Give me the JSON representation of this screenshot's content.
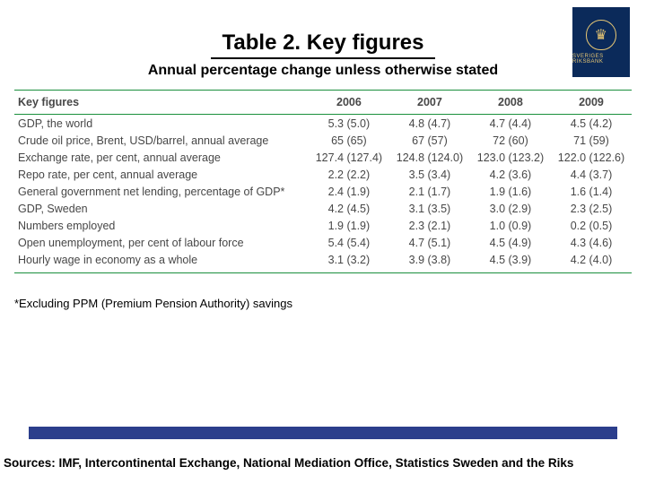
{
  "logo": {
    "text": "SVERIGES RIKSBANK",
    "crest_glyph": "♛"
  },
  "title": "Table 2. Key figures",
  "subtitle": "Annual percentage change unless otherwise stated",
  "table": {
    "header_label": "Key figures",
    "years": [
      "2006",
      "2007",
      "2008",
      "2009"
    ],
    "rows": [
      {
        "label": "GDP, the world",
        "v": [
          "5.3 (5.0)",
          "4.8 (4.7)",
          "4.7 (4.4)",
          "4.5 (4.2)"
        ]
      },
      {
        "label": "Crude oil price, Brent, USD/barrel, annual average",
        "v": [
          "65 (65)",
          "67 (57)",
          "72 (60)",
          "71 (59)"
        ]
      },
      {
        "label": "Exchange rate, per cent, annual average",
        "v": [
          "127.4 (127.4)",
          "124.8 (124.0)",
          "123.0 (123.2)",
          "122.0 (122.6)"
        ]
      },
      {
        "label": "Repo rate, per cent, annual average",
        "v": [
          "2.2 (2.2)",
          "3.5 (3.4)",
          "4.2 (3.6)",
          "4.4 (3.7)"
        ]
      },
      {
        "label": "General government net lending, percentage of GDP*",
        "v": [
          "2.4 (1.9)",
          "2.1 (1.7)",
          "1.9 (1.6)",
          "1.6 (1.4)"
        ]
      },
      {
        "label": "GDP, Sweden",
        "v": [
          "4.2 (4.5)",
          "3.1 (3.5)",
          "3.0 (2.9)",
          "2.3 (2.5)"
        ]
      },
      {
        "label": "Numbers employed",
        "v": [
          "1.9 (1.9)",
          "2.3 (2.1)",
          "1.0 (0.9)",
          "0.2 (0.5)"
        ]
      },
      {
        "label": "Open unemployment, per cent of labour force",
        "v": [
          "5.4 (5.4)",
          "4.7 (5.1)",
          "4.5 (4.9)",
          "4.3 (4.6)"
        ]
      },
      {
        "label": "Hourly wage in economy as a whole",
        "v": [
          "3.1 (3.2)",
          "3.9 (3.8)",
          "4.5 (3.9)",
          "4.2 (4.0)"
        ]
      }
    ],
    "border_color": "#1a8f3c",
    "text_color": "#474747"
  },
  "footnote": "*Excluding PPM (Premium Pension Authority) savings",
  "bottom_bar_color": "#2b3e8c",
  "sources": "Sources: IMF, Intercontinental Exchange, National Mediation Office, Statistics Sweden and the Riks"
}
